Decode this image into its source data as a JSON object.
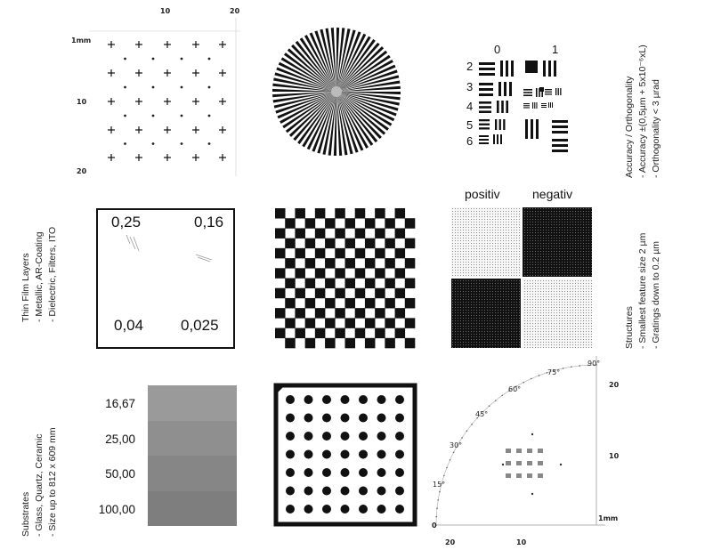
{
  "grid_target": {
    "top_ticks": [
      "10",
      "20"
    ],
    "left_ticks": [
      "1mm",
      "10",
      "20"
    ]
  },
  "usaf_target": {
    "group_labels": [
      "0",
      "1"
    ],
    "element_labels": [
      "2",
      "3",
      "4",
      "5",
      "6"
    ]
  },
  "accuracy_text": {
    "title": "Accuracy / Orthogonality",
    "line1": "- Accuracy ±(0,5µm + 5x10⁻⁶xL)",
    "line2": "- Orthogonality  < 3 µrad"
  },
  "thin_film_text": {
    "title": "Thin Film Layers",
    "line1": "- Metallic, AR-Coating",
    "line2": "- Dielectric, Filters, ITO"
  },
  "line_width_box": {
    "labels": [
      "0,25",
      "0,16",
      "0,04",
      "0,025"
    ]
  },
  "polarity": {
    "positive_label": "positiv",
    "negative_label": "negativ"
  },
  "structures_text": {
    "title": "Structures",
    "line1": "- Smallest feature size 2 µm",
    "line2": "- Gratings down to 0.2 µm"
  },
  "substrates_text": {
    "title": "Substrates",
    "line1": "- Glass, Quartz, Ceramic",
    "line2": "- Size up to 812 x 609 mm"
  },
  "density_steps": {
    "labels": [
      "16,67",
      "25,00",
      "50,00",
      "100,00"
    ],
    "gray_levels": [
      "#9a9a9a",
      "#8f8f8f",
      "#868686",
      "#7e7e7e"
    ]
  },
  "polar_target": {
    "angle_labels": [
      "15°",
      "30°",
      "45°",
      "60°",
      "75°",
      "90°"
    ],
    "right_ticks": [
      "20",
      "10",
      "1mm"
    ],
    "bottom_ticks": [
      "20",
      "10"
    ],
    "origin_label": "0"
  }
}
